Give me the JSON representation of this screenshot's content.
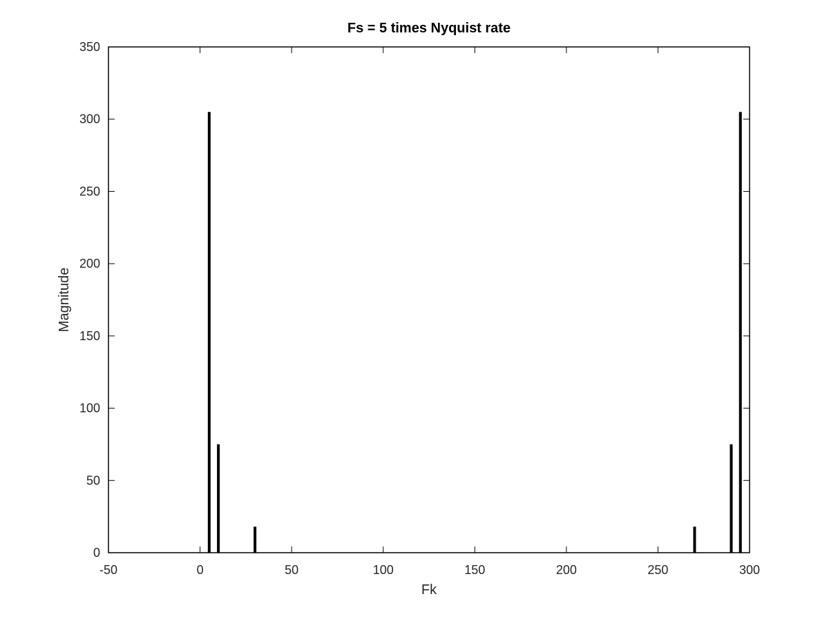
{
  "chart_data": {
    "type": "bar",
    "title": "Fs = 5 times Nyquist rate",
    "xlabel": "Fk",
    "ylabel": "Magnitude",
    "xlim": [
      -50,
      300
    ],
    "ylim": [
      0,
      350
    ],
    "xticks": [
      "-50",
      "0",
      "50",
      "100",
      "150",
      "200",
      "250",
      "300"
    ],
    "yticks": [
      "0",
      "50",
      "100",
      "150",
      "200",
      "250",
      "300",
      "350"
    ],
    "grid": false,
    "bar_color": "#000000",
    "points": [
      {
        "x": 0,
        "y": 0
      },
      {
        "x": 5,
        "y": 305
      },
      {
        "x": 10,
        "y": 75
      },
      {
        "x": 15,
        "y": 0
      },
      {
        "x": 20,
        "y": 0
      },
      {
        "x": 25,
        "y": 0
      },
      {
        "x": 30,
        "y": 18
      },
      {
        "x": 270,
        "y": 18
      },
      {
        "x": 290,
        "y": 75
      },
      {
        "x": 295,
        "y": 305
      }
    ]
  }
}
